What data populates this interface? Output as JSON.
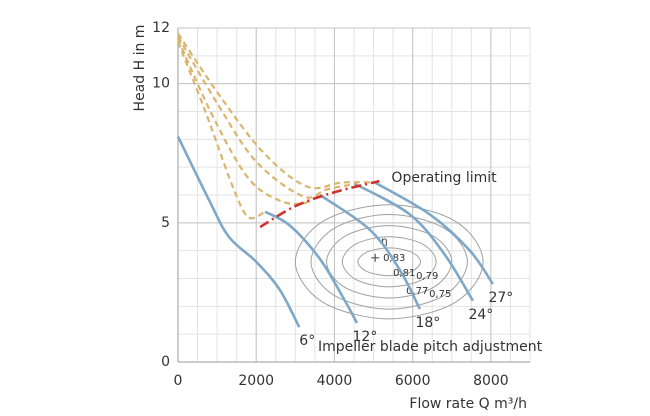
{
  "chart_data": {
    "type": "line",
    "x_label": "Flow rate Q m³/h",
    "y_label": "Head H in m",
    "xlim": [
      0,
      9000
    ],
    "ylim": [
      0,
      12
    ],
    "xticks": [
      0,
      2000,
      4000,
      6000,
      8000
    ],
    "yticks": [
      0,
      5,
      10,
      12
    ],
    "grid": true,
    "series": [
      {
        "name": "6°",
        "color": "#7fa8c8",
        "x": [
          0,
          800,
          1300,
          2000,
          2600,
          3100
        ],
        "values": [
          8.1,
          5.8,
          4.5,
          3.6,
          2.6,
          1.25
        ]
      },
      {
        "name": "12°",
        "color": "#7fa8c8",
        "x": [
          2224,
          2863,
          3630,
          4268,
          4575
        ],
        "values": [
          5.4,
          4.9,
          3.7,
          2.2,
          1.4
        ]
      },
      {
        "name": "18°",
        "color": "#7fa8c8",
        "x": [
          3630,
          4907,
          5674,
          6185
        ],
        "values": [
          6.0,
          4.75,
          3.3,
          1.9
        ]
      },
      {
        "name": "24°",
        "color": "#7fa8c8",
        "x": [
          4524,
          5930,
          6824,
          7540
        ],
        "values": [
          6.4,
          5.3,
          3.85,
          2.2
        ]
      },
      {
        "name": "27°",
        "color": "#7fa8c8",
        "x": [
          5035,
          6440,
          7463,
          8051
        ],
        "values": [
          6.45,
          5.3,
          4.0,
          2.8
        ]
      }
    ],
    "unstable_series": [
      {
        "color": "#d9b56e",
        "x": [
          0,
          700,
          1400,
          1800,
          2224
        ],
        "values": [
          11.5,
          9.0,
          6.3,
          5.2,
          5.4
        ]
      },
      {
        "color": "#d9b56e",
        "x": [
          0,
          900,
          1800,
          2600,
          3200,
          3630
        ],
        "values": [
          11.6,
          8.8,
          6.6,
          5.8,
          5.7,
          6.0
        ]
      },
      {
        "color": "#d9b56e",
        "x": [
          0,
          1000,
          2000,
          3200,
          3800,
          4524
        ],
        "values": [
          11.7,
          9.3,
          7.2,
          5.95,
          6.2,
          6.4
        ]
      },
      {
        "color": "#d9b56e",
        "x": [
          0,
          1100,
          2200,
          3300,
          4200,
          5035
        ],
        "values": [
          11.8,
          9.5,
          7.5,
          6.3,
          6.45,
          6.45
        ]
      }
    ],
    "operating_limit": {
      "label": "Operating limit",
      "color": "#d0312d",
      "x": [
        2100,
        3000,
        4000,
        5150
      ],
      "values": [
        4.85,
        5.6,
        6.1,
        6.5
      ]
    },
    "efficiency": {
      "symbol": "η",
      "color": "#a0a0a0",
      "contours": [
        {
          "value": 0.83,
          "value_label": "0,83",
          "x": [
            6200,
            5966,
            5400,
            4834,
            4600,
            4834,
            5400,
            5966
          ],
          "values": [
            3.6,
            3.95,
            4.1,
            3.95,
            3.6,
            3.25,
            3.1,
            3.25
          ]
        },
        {
          "value": 0.81,
          "value_label": "0,81",
          "x": [
            6600,
            6249,
            5400,
            4551,
            4200,
            4551,
            5400,
            6249
          ],
          "values": [
            3.6,
            4.24,
            4.5,
            4.24,
            3.6,
            2.96,
            2.7,
            2.96
          ]
        },
        {
          "value": 0.79,
          "value_label": "0,79",
          "x": [
            7000,
            6531,
            5400,
            4269,
            3800,
            4269,
            5400,
            6531
          ],
          "values": [
            3.6,
            4.52,
            4.9,
            4.52,
            3.6,
            2.68,
            2.3,
            2.68
          ]
        },
        {
          "value": 0.77,
          "value_label": "0,77",
          "x": [
            7400,
            6814,
            5400,
            3986,
            3400,
            3986,
            5400,
            6814
          ],
          "values": [
            3.6,
            4.8,
            5.3,
            4.8,
            3.6,
            2.4,
            1.9,
            2.4
          ]
        },
        {
          "value": 0.75,
          "value_label": "0,75",
          "x": [
            7800,
            7097,
            5400,
            3703,
            3000,
            3703,
            5400,
            7097
          ],
          "values": [
            3.6,
            5.05,
            5.65,
            5.05,
            3.6,
            2.15,
            1.55,
            2.15
          ]
        }
      ]
    },
    "annotation": "Impeller blade pitch adjustment"
  }
}
